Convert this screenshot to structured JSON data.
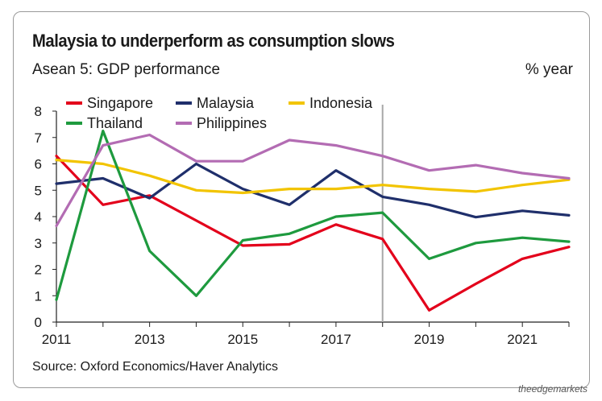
{
  "title": "Malaysia to underperform as consumption slows",
  "subtitle": "Asean 5: GDP performance",
  "unit_label": "% year",
  "source": "Source: Oxford Economics/Haver Analytics",
  "brand": "theedgemarkets",
  "chart_data": {
    "type": "line",
    "x": [
      2011,
      2012,
      2013,
      2014,
      2015,
      2016,
      2017,
      2018,
      2019,
      2020,
      2021,
      2022
    ],
    "x_tick_labels": [
      "2011",
      "2013",
      "2015",
      "2017",
      "2019",
      "2021"
    ],
    "y_tick_labels": [
      "0",
      "1",
      "2",
      "3",
      "4",
      "5",
      "6",
      "7",
      "8"
    ],
    "ylim": [
      0,
      8
    ],
    "xlim": [
      2011,
      2022
    ],
    "grid": false,
    "legend_placement": "top",
    "vertical_marker_x": 2018,
    "series": [
      {
        "name": "Singapore",
        "color": "#e3001b",
        "values": [
          6.3,
          4.45,
          4.8,
          3.85,
          2.9,
          2.95,
          3.7,
          3.15,
          0.45,
          1.45,
          2.4,
          2.85
        ]
      },
      {
        "name": "Malaysia",
        "color": "#1f2f6b",
        "values": [
          5.25,
          5.45,
          4.7,
          6.0,
          5.05,
          4.45,
          5.75,
          4.75,
          4.45,
          3.98,
          4.22,
          4.05
        ]
      },
      {
        "name": "Indonesia",
        "color": "#f2c400",
        "values": [
          6.15,
          6.0,
          5.55,
          5.0,
          4.9,
          5.05,
          5.05,
          5.2,
          5.05,
          4.95,
          5.2,
          5.4
        ]
      },
      {
        "name": "Thailand",
        "color": "#1e9a3e",
        "values": [
          0.85,
          7.25,
          2.7,
          1.0,
          3.1,
          3.35,
          4.0,
          4.15,
          2.4,
          3.0,
          3.2,
          3.05
        ]
      },
      {
        "name": "Philippines",
        "color": "#b36cb3",
        "values": [
          3.65,
          6.7,
          7.1,
          6.1,
          6.1,
          6.9,
          6.7,
          6.3,
          5.75,
          5.95,
          5.65,
          5.45
        ]
      }
    ]
  }
}
